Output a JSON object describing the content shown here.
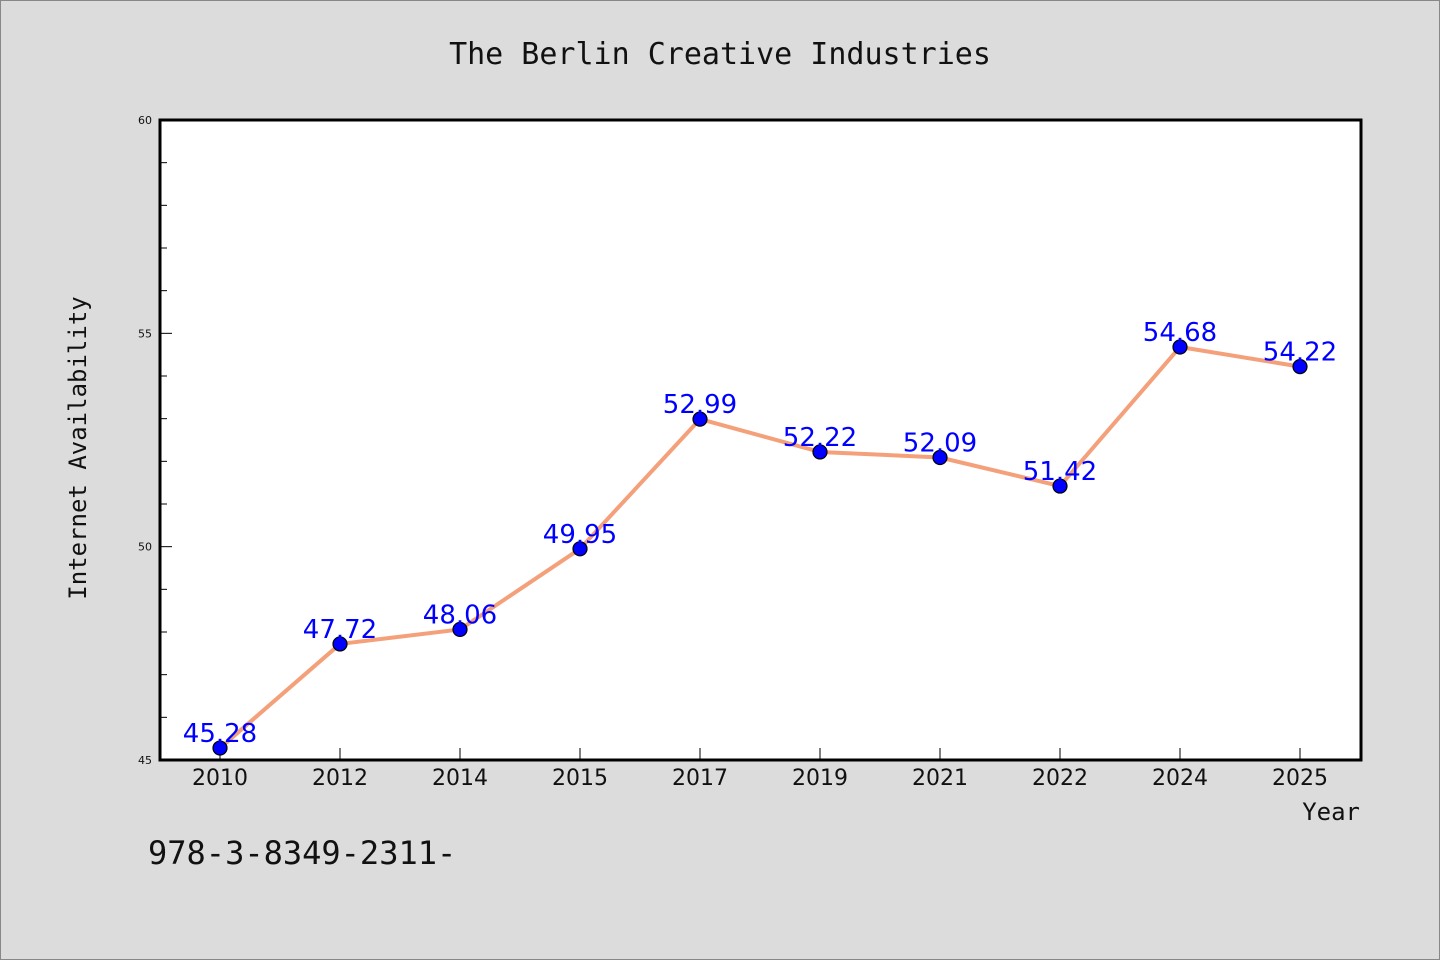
{
  "chart_data": {
    "type": "line",
    "title": "The Berlin Creative Industries",
    "xlabel": "Year",
    "ylabel": "Internet Availability",
    "categories": [
      "2010",
      "2012",
      "2014",
      "2015",
      "2017",
      "2019",
      "2021",
      "2022",
      "2024",
      "2025"
    ],
    "series": [
      {
        "values": [
          45.28,
          47.72,
          48.06,
          49.95,
          52.99,
          52.22,
          52.09,
          51.42,
          54.68,
          54.22
        ]
      }
    ],
    "data_labels": [
      "45.28",
      "47.72",
      "48.06",
      "49.95",
      "52.99",
      "52.22",
      "52.09",
      "51.42",
      "54.68",
      "54.22"
    ],
    "ylim": [
      45,
      60
    ],
    "yticks": [
      "45",
      "50",
      "55",
      "60"
    ],
    "grid": false,
    "legend": "none",
    "colors": {
      "line": "#f4a07a",
      "marker": "#0000ff",
      "label": "#0000ff",
      "plot_bg": "#ffffff",
      "page_bg": "#dcdcdc"
    }
  },
  "footer_text": "978-3-8349-2311-"
}
